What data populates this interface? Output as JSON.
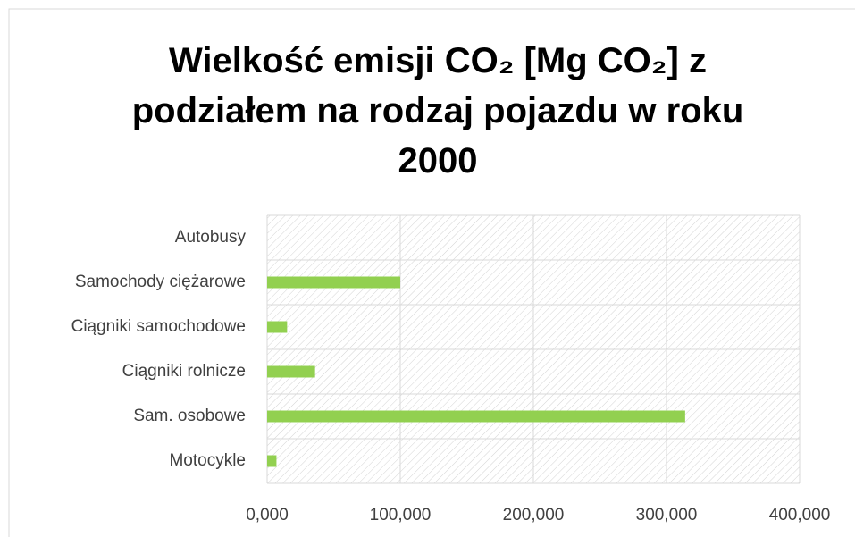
{
  "chart_data": {
    "type": "barh",
    "title": "Wielkość emisji CO₂ [Mg CO₂] z podziałem na rodzaj pojazdu w roku 2000",
    "categories": [
      "Motocykle",
      "Sam. osobowe",
      "Ciągniki rolnicze",
      "Ciągniki samochodowe",
      "Samochody ciężarowe",
      "Autobusy"
    ],
    "values": [
      7000,
      314000,
      36000,
      15000,
      100000,
      0
    ],
    "color": "#92d050",
    "xlim": [
      0,
      400000
    ],
    "xticks": [
      {
        "value": 0,
        "label": "0,000"
      },
      {
        "value": 100000,
        "label": "100,000"
      },
      {
        "value": 200000,
        "label": "200,000"
      },
      {
        "value": 300000,
        "label": "300,000"
      },
      {
        "value": 400000,
        "label": "400,000"
      }
    ],
    "grid": true
  }
}
